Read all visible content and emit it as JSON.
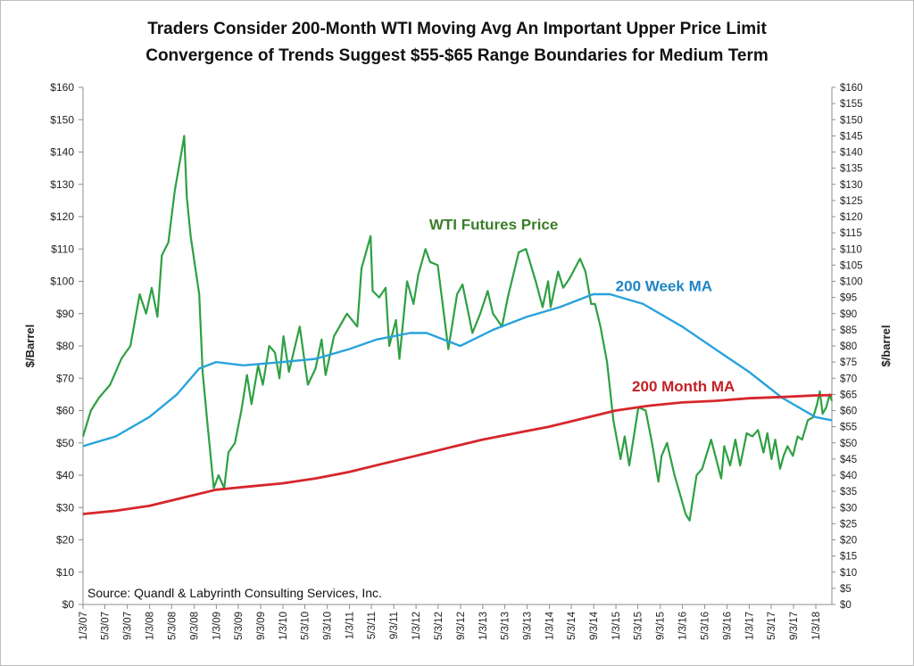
{
  "title_line1": "Traders Consider 200-Month WTI Moving Avg An Important Upper Price Limit",
  "title_line2": "Convergence of Trends Suggest $55-$65 Range Boundaries for Medium Term",
  "source_note": "Source:  Quandl & Labyrinth Consulting Services, Inc.",
  "chart_data": {
    "type": "line",
    "ylabel": "$/Barrel",
    "ylabel_right": "$/barrel",
    "ylim": [
      0,
      160
    ],
    "left_ticks": [
      "$0",
      "$10",
      "$20",
      "$30",
      "$40",
      "$50",
      "$60",
      "$70",
      "$80",
      "$90",
      "$100",
      "$110",
      "$120",
      "$130",
      "$140",
      "$150",
      "$160"
    ],
    "right_ticks": [
      "$0",
      "$5",
      "$10",
      "$15",
      "$20",
      "$25",
      "$30",
      "$35",
      "$40",
      "$45",
      "$50",
      "$55",
      "$60",
      "$65",
      "$70",
      "$75",
      "$80",
      "$85",
      "$90",
      "$95",
      "$100",
      "$105",
      "$110",
      "$115",
      "$120",
      "$125",
      "$130",
      "$135",
      "$140",
      "$145",
      "$150",
      "$155",
      "$160"
    ],
    "x_range": [
      "2007-01-03",
      "2018-04-01"
    ],
    "x_ticks": [
      "1/3/07",
      "5/3/07",
      "9/3/07",
      "1/3/08",
      "5/3/08",
      "9/3/08",
      "1/3/09",
      "5/3/09",
      "9/3/09",
      "1/3/10",
      "5/3/10",
      "9/3/10",
      "1/3/11",
      "5/3/11",
      "9/3/11",
      "1/3/12",
      "5/3/12",
      "9/3/12",
      "1/3/13",
      "5/3/13",
      "9/3/13",
      "1/3/14",
      "5/3/14",
      "9/3/14",
      "1/3/15",
      "5/3/15",
      "9/3/15",
      "1/3/16",
      "5/3/16",
      "9/3/16",
      "1/3/17",
      "5/3/17",
      "9/3/17",
      "1/3/18"
    ],
    "series": [
      {
        "name": "WTI Futures Price",
        "color": "#2ea043",
        "points": [
          [
            "2007-01-03",
            52
          ],
          [
            "2007-02-15",
            60
          ],
          [
            "2007-04-01",
            64
          ],
          [
            "2007-06-01",
            68
          ],
          [
            "2007-08-01",
            76
          ],
          [
            "2007-09-20",
            80
          ],
          [
            "2007-11-10",
            96
          ],
          [
            "2007-12-15",
            90
          ],
          [
            "2008-01-15",
            98
          ],
          [
            "2008-02-15",
            89
          ],
          [
            "2008-03-10",
            108
          ],
          [
            "2008-04-15",
            112
          ],
          [
            "2008-05-20",
            128
          ],
          [
            "2008-06-20",
            138
          ],
          [
            "2008-07-11",
            145
          ],
          [
            "2008-07-25",
            126
          ],
          [
            "2008-08-15",
            114
          ],
          [
            "2008-09-10",
            104
          ],
          [
            "2008-10-01",
            96
          ],
          [
            "2008-10-20",
            72
          ],
          [
            "2008-11-15",
            56
          ],
          [
            "2008-12-20",
            36
          ],
          [
            "2009-01-15",
            40
          ],
          [
            "2009-02-15",
            36
          ],
          [
            "2009-03-10",
            47
          ],
          [
            "2009-04-15",
            50
          ],
          [
            "2009-05-20",
            60
          ],
          [
            "2009-06-20",
            71
          ],
          [
            "2009-07-15",
            62
          ],
          [
            "2009-08-20",
            74
          ],
          [
            "2009-09-15",
            68
          ],
          [
            "2009-10-20",
            80
          ],
          [
            "2009-11-20",
            78
          ],
          [
            "2009-12-15",
            70
          ],
          [
            "2010-01-06",
            83
          ],
          [
            "2010-02-05",
            72
          ],
          [
            "2010-04-05",
            86
          ],
          [
            "2010-05-20",
            68
          ],
          [
            "2010-07-01",
            73
          ],
          [
            "2010-08-03",
            82
          ],
          [
            "2010-08-25",
            71
          ],
          [
            "2010-10-10",
            83
          ],
          [
            "2010-12-20",
            90
          ],
          [
            "2011-02-15",
            86
          ],
          [
            "2011-03-10",
            104
          ],
          [
            "2011-04-29",
            114
          ],
          [
            "2011-05-10",
            97
          ],
          [
            "2011-06-15",
            95
          ],
          [
            "2011-07-20",
            98
          ],
          [
            "2011-08-09",
            80
          ],
          [
            "2011-09-15",
            88
          ],
          [
            "2011-10-04",
            76
          ],
          [
            "2011-11-15",
            100
          ],
          [
            "2011-12-20",
            93
          ],
          [
            "2012-01-15",
            102
          ],
          [
            "2012-02-24",
            110
          ],
          [
            "2012-03-20",
            106
          ],
          [
            "2012-05-01",
            105
          ],
          [
            "2012-06-28",
            79
          ],
          [
            "2012-08-15",
            96
          ],
          [
            "2012-09-14",
            99
          ],
          [
            "2012-11-07",
            84
          ],
          [
            "2012-12-20",
            90
          ],
          [
            "2013-01-30",
            97
          ],
          [
            "2013-02-28",
            90
          ],
          [
            "2013-04-18",
            86
          ],
          [
            "2013-05-20",
            95
          ],
          [
            "2013-07-19",
            109
          ],
          [
            "2013-08-28",
            110
          ],
          [
            "2013-10-20",
            100
          ],
          [
            "2013-11-27",
            92
          ],
          [
            "2013-12-27",
            100
          ],
          [
            "2014-01-10",
            92
          ],
          [
            "2014-02-20",
            103
          ],
          [
            "2014-03-20",
            98
          ],
          [
            "2014-04-25",
            101
          ],
          [
            "2014-06-20",
            107
          ],
          [
            "2014-07-20",
            103
          ],
          [
            "2014-08-20",
            93
          ],
          [
            "2014-09-10",
            93
          ],
          [
            "2014-10-10",
            86
          ],
          [
            "2014-11-15",
            75
          ],
          [
            "2014-12-20",
            57
          ],
          [
            "2015-01-28",
            45
          ],
          [
            "2015-02-20",
            52
          ],
          [
            "2015-03-17",
            43
          ],
          [
            "2015-05-06",
            61
          ],
          [
            "2015-06-15",
            60
          ],
          [
            "2015-07-20",
            50
          ],
          [
            "2015-08-24",
            38
          ],
          [
            "2015-09-10",
            46
          ],
          [
            "2015-10-10",
            50
          ],
          [
            "2015-11-20",
            40
          ],
          [
            "2015-12-21",
            34
          ],
          [
            "2016-01-20",
            28
          ],
          [
            "2016-02-11",
            26
          ],
          [
            "2016-03-20",
            40
          ],
          [
            "2016-04-20",
            42
          ],
          [
            "2016-06-08",
            51
          ],
          [
            "2016-08-02",
            39
          ],
          [
            "2016-08-19",
            49
          ],
          [
            "2016-09-20",
            43
          ],
          [
            "2016-10-19",
            51
          ],
          [
            "2016-11-14",
            43
          ],
          [
            "2016-12-20",
            53
          ],
          [
            "2017-01-20",
            52
          ],
          [
            "2017-02-20",
            54
          ],
          [
            "2017-03-22",
            47
          ],
          [
            "2017-04-12",
            53
          ],
          [
            "2017-05-05",
            45
          ],
          [
            "2017-05-25",
            51
          ],
          [
            "2017-06-21",
            42
          ],
          [
            "2017-07-10",
            46
          ],
          [
            "2017-08-01",
            49
          ],
          [
            "2017-08-30",
            46
          ],
          [
            "2017-09-25",
            52
          ],
          [
            "2017-10-20",
            51
          ],
          [
            "2017-11-20",
            57
          ],
          [
            "2017-12-20",
            58
          ],
          [
            "2018-01-10",
            62
          ],
          [
            "2018-01-25",
            66
          ],
          [
            "2018-02-09",
            59
          ],
          [
            "2018-03-01",
            61
          ],
          [
            "2018-03-20",
            65
          ],
          [
            "2018-04-01",
            63
          ]
        ]
      },
      {
        "name": "200 Week MA",
        "color": "#29a3dc",
        "points": [
          [
            "2007-01-03",
            49
          ],
          [
            "2007-07-01",
            52
          ],
          [
            "2008-01-01",
            58
          ],
          [
            "2008-06-01",
            65
          ],
          [
            "2008-10-01",
            73
          ],
          [
            "2009-01-01",
            75
          ],
          [
            "2009-06-01",
            74
          ],
          [
            "2010-01-01",
            75
          ],
          [
            "2010-07-01",
            76
          ],
          [
            "2011-01-01",
            79
          ],
          [
            "2011-06-01",
            82
          ],
          [
            "2011-12-01",
            84
          ],
          [
            "2012-03-01",
            84
          ],
          [
            "2012-09-01",
            80
          ],
          [
            "2013-03-01",
            85
          ],
          [
            "2013-09-01",
            89
          ],
          [
            "2014-03-01",
            92
          ],
          [
            "2014-09-01",
            96
          ],
          [
            "2014-12-01",
            96
          ],
          [
            "2015-06-01",
            93
          ],
          [
            "2016-01-01",
            86
          ],
          [
            "2016-07-01",
            79
          ],
          [
            "2017-01-01",
            72
          ],
          [
            "2017-07-01",
            64
          ],
          [
            "2018-01-01",
            58
          ],
          [
            "2018-04-01",
            57
          ]
        ]
      },
      {
        "name": "200 Month MA",
        "color": "#d6262c",
        "points": [
          [
            "2007-01-03",
            28
          ],
          [
            "2007-07-01",
            29
          ],
          [
            "2008-01-01",
            30.5
          ],
          [
            "2008-07-01",
            33
          ],
          [
            "2009-01-01",
            35.5
          ],
          [
            "2009-07-01",
            36.5
          ],
          [
            "2010-01-01",
            37.5
          ],
          [
            "2010-07-01",
            39
          ],
          [
            "2011-01-01",
            41
          ],
          [
            "2011-07-01",
            43.5
          ],
          [
            "2012-01-01",
            46
          ],
          [
            "2012-07-01",
            48.5
          ],
          [
            "2013-01-01",
            51
          ],
          [
            "2013-07-01",
            53
          ],
          [
            "2014-01-01",
            55
          ],
          [
            "2014-07-01",
            57.5
          ],
          [
            "2015-01-01",
            60
          ],
          [
            "2015-07-01",
            61.5
          ],
          [
            "2016-01-01",
            62.5
          ],
          [
            "2016-07-01",
            63
          ],
          [
            "2017-01-01",
            63.8
          ],
          [
            "2017-07-01",
            64.2
          ],
          [
            "2018-01-01",
            64.7
          ],
          [
            "2018-04-01",
            64.8
          ]
        ]
      }
    ],
    "annotations": [
      {
        "text": "WTI Futures Price",
        "color": "#3a7d28",
        "at": [
          "2012-03-15",
          116
        ]
      },
      {
        "text": "200 Week MA",
        "color": "#1f85c4",
        "at": [
          "2015-01-01",
          97
        ]
      },
      {
        "text": "200 Month MA",
        "color": "#c42126",
        "at": [
          "2015-04-01",
          66
        ]
      }
    ]
  }
}
